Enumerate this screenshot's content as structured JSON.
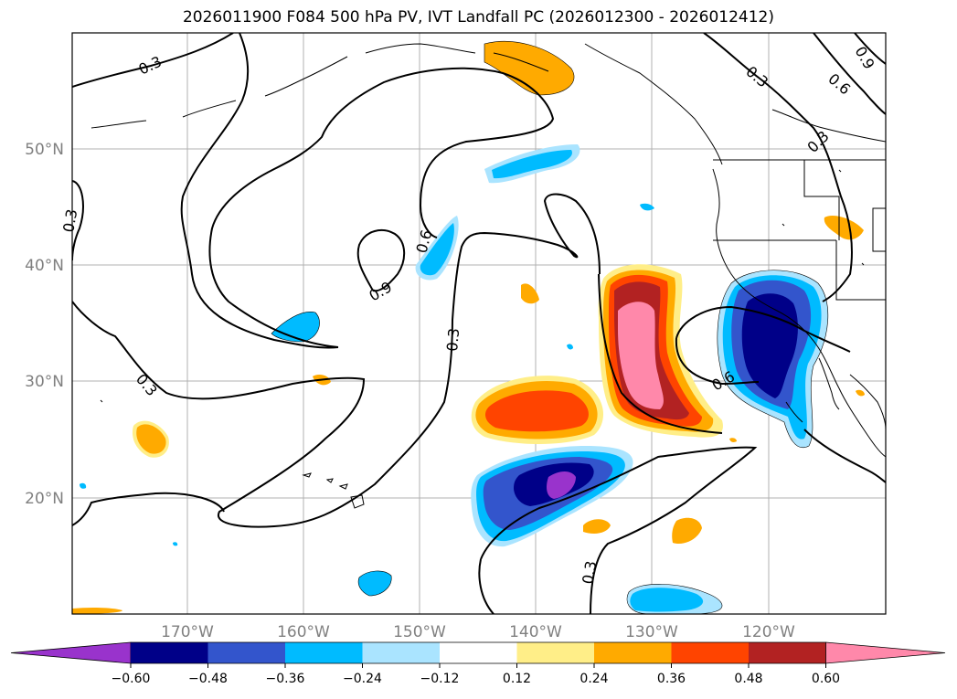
{
  "title": "2026011900 F084 500 hPa PV, IVT Landfall PC (2026012300 - 2026012412)",
  "lat_labels": [
    "50°N",
    "40°N",
    "30°N",
    "20°N"
  ],
  "lon_labels": [
    "170°W",
    "160°W",
    "150°W",
    "140°W",
    "130°W",
    "120°W"
  ],
  "contour_labels": [
    "0.3",
    "0.3",
    "0.3",
    "0.6",
    "0.9",
    "0.3",
    "0.3",
    "0.6",
    "0.9",
    "0.3",
    "0.6",
    "0.3"
  ],
  "colorbar": {
    "colors": [
      "#9933cc",
      "#000088",
      "#3355cc",
      "#00bbff",
      "#aae4ff",
      "#ffffff",
      "#ffee88",
      "#ffaa00",
      "#ff4400",
      "#b22222",
      "#ff88aa"
    ],
    "ticks": [
      "−0.60",
      "−0.48",
      "−0.36",
      "−0.24",
      "−0.12",
      "0.12",
      "0.24",
      "0.36",
      "0.48",
      "0.60"
    ]
  }
}
